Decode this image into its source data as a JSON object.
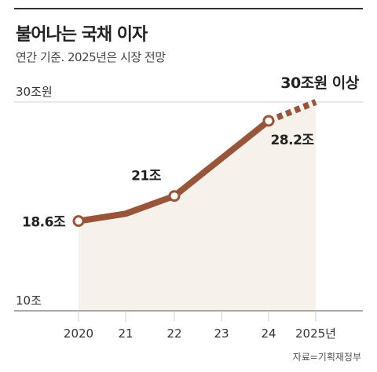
{
  "header": {
    "title": "불어나는 국채 이자",
    "subtitle": "연간 기준. 2025년은 시장 전망"
  },
  "source": "자료=기획재정부",
  "colors": {
    "line": "#98553a",
    "area": "#f6f1ea",
    "grid": "#d0d0d0",
    "axis": "#555555"
  },
  "chart_data": {
    "type": "line",
    "title": "불어나는 국채 이자",
    "subtitle": "연간 기준. 2025년은 시장 전망",
    "categories": [
      "2020",
      "21",
      "22",
      "23",
      "24",
      "2025년"
    ],
    "series": [
      {
        "values": [
          18.6,
          19.3,
          21.0,
          24.6,
          28.2,
          30.0
        ],
        "projected_from_index": 4
      }
    ],
    "ylim": [
      10,
      30
    ],
    "yticks": [
      {
        "value": 30,
        "label": "30조원"
      },
      {
        "value": 10,
        "label": "10조"
      }
    ],
    "data_labels": [
      {
        "index": 0,
        "text": "18.6조"
      },
      {
        "index": 2,
        "text": "21조"
      },
      {
        "index": 4,
        "text": "28.2조"
      },
      {
        "index": 5,
        "text": "30조원 이상"
      }
    ],
    "grid": true,
    "legend": "none"
  }
}
